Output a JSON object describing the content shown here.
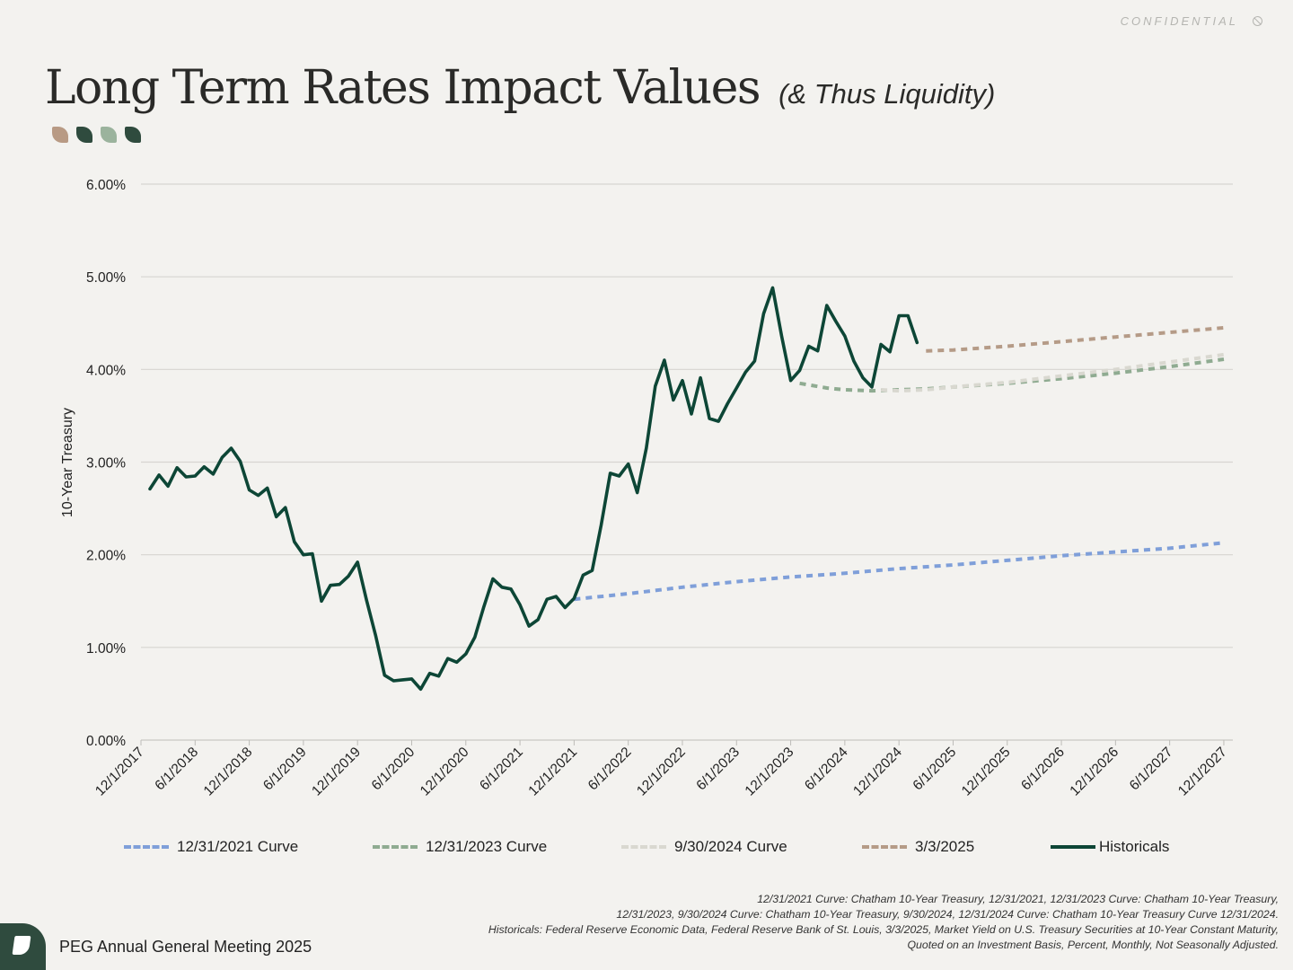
{
  "header": {
    "confidential_label": "CONFIDENTIAL",
    "confidential_icon": "ban-icon",
    "title": "Long Term Rates Impact Values",
    "subtitle": "(& Thus Liquidity)"
  },
  "leaf_colors": [
    "#b89a84",
    "#2f4b3e",
    "#9bb39d",
    "#2f4b3e"
  ],
  "chart_data": {
    "type": "line",
    "title": "Long Term Rates Impact Values (& Thus Liquidity)",
    "ylabel": "10-Year Treasury",
    "xlabel": "",
    "ylim": [
      0,
      6
    ],
    "y_ticks": [
      0,
      1,
      2,
      3,
      4,
      5,
      6
    ],
    "y_tick_labels": [
      "0.00%",
      "1.00%",
      "2.00%",
      "3.00%",
      "4.00%",
      "5.00%",
      "6.00%"
    ],
    "x_unit": "months since 12/1/2017",
    "xlim": [
      0,
      121
    ],
    "x_ticks": [
      0,
      6,
      12,
      18,
      24,
      30,
      36,
      42,
      48,
      54,
      60,
      66,
      72,
      78,
      84,
      90,
      96,
      102,
      108,
      114,
      120
    ],
    "x_tick_labels": [
      "12/1/2017",
      "6/1/2018",
      "12/1/2018",
      "6/1/2019",
      "12/1/2019",
      "6/1/2020",
      "12/1/2020",
      "6/1/2021",
      "12/1/2021",
      "6/1/2022",
      "12/1/2022",
      "6/1/2023",
      "12/1/2023",
      "6/1/2024",
      "12/1/2024",
      "6/1/2025",
      "12/1/2025",
      "6/1/2026",
      "12/1/2026",
      "6/1/2027",
      "12/1/2027"
    ],
    "grid": true,
    "legend_position": "bottom",
    "series": [
      {
        "name": "12/31/2021 Curve",
        "color": "#7f9fd9",
        "style": "dashed",
        "points": [
          [
            48,
            1.52
          ],
          [
            54,
            1.58
          ],
          [
            60,
            1.65
          ],
          [
            66,
            1.71
          ],
          [
            72,
            1.76
          ],
          [
            78,
            1.8
          ],
          [
            84,
            1.85
          ],
          [
            90,
            1.89
          ],
          [
            96,
            1.94
          ],
          [
            102,
            1.99
          ],
          [
            108,
            2.03
          ],
          [
            114,
            2.07
          ],
          [
            120,
            2.13
          ]
        ]
      },
      {
        "name": "12/31/2023 Curve",
        "color": "#8fab91",
        "style": "dashed",
        "points": [
          [
            73,
            3.85
          ],
          [
            76,
            3.8
          ],
          [
            78,
            3.78
          ],
          [
            81,
            3.77
          ],
          [
            84,
            3.78
          ],
          [
            87,
            3.79
          ],
          [
            90,
            3.81
          ],
          [
            96,
            3.85
          ],
          [
            102,
            3.9
          ],
          [
            108,
            3.96
          ],
          [
            114,
            4.03
          ],
          [
            120,
            4.11
          ]
        ]
      },
      {
        "name": "9/30/2024 Curve",
        "color": "#d9d8d0",
        "style": "dashed",
        "points": [
          [
            82,
            3.78
          ],
          [
            84,
            3.77
          ],
          [
            87,
            3.78
          ],
          [
            90,
            3.81
          ],
          [
            96,
            3.86
          ],
          [
            102,
            3.93
          ],
          [
            108,
            4.0
          ],
          [
            114,
            4.08
          ],
          [
            120,
            4.16
          ]
        ]
      },
      {
        "name": "3/3/2025",
        "color": "#b59b87",
        "style": "dashed",
        "points": [
          [
            87,
            4.2
          ],
          [
            90,
            4.21
          ],
          [
            96,
            4.25
          ],
          [
            102,
            4.3
          ],
          [
            108,
            4.35
          ],
          [
            114,
            4.4
          ],
          [
            120,
            4.45
          ]
        ]
      },
      {
        "name": "Historicals",
        "color": "#0d4636",
        "style": "solid",
        "points": [
          [
            1,
            2.71
          ],
          [
            2,
            2.86
          ],
          [
            3,
            2.74
          ],
          [
            4,
            2.94
          ],
          [
            5,
            2.84
          ],
          [
            6,
            2.85
          ],
          [
            7,
            2.95
          ],
          [
            8,
            2.87
          ],
          [
            9,
            3.05
          ],
          [
            10,
            3.15
          ],
          [
            11,
            3.01
          ],
          [
            12,
            2.7
          ],
          [
            13,
            2.64
          ],
          [
            14,
            2.72
          ],
          [
            15,
            2.41
          ],
          [
            16,
            2.51
          ],
          [
            17,
            2.14
          ],
          [
            18,
            2.0
          ],
          [
            19,
            2.01
          ],
          [
            20,
            1.5
          ],
          [
            21,
            1.67
          ],
          [
            22,
            1.68
          ],
          [
            23,
            1.77
          ],
          [
            24,
            1.92
          ],
          [
            25,
            1.51
          ],
          [
            26,
            1.13
          ],
          [
            27,
            0.7
          ],
          [
            28,
            0.64
          ],
          [
            29,
            0.65
          ],
          [
            30,
            0.66
          ],
          [
            31,
            0.55
          ],
          [
            32,
            0.72
          ],
          [
            33,
            0.69
          ],
          [
            34,
            0.88
          ],
          [
            35,
            0.84
          ],
          [
            36,
            0.93
          ],
          [
            37,
            1.11
          ],
          [
            38,
            1.44
          ],
          [
            39,
            1.74
          ],
          [
            40,
            1.65
          ],
          [
            41,
            1.63
          ],
          [
            42,
            1.46
          ],
          [
            43,
            1.23
          ],
          [
            44,
            1.3
          ],
          [
            45,
            1.52
          ],
          [
            46,
            1.55
          ],
          [
            47,
            1.43
          ],
          [
            48,
            1.53
          ],
          [
            49,
            1.78
          ],
          [
            50,
            1.83
          ],
          [
            51,
            2.32
          ],
          [
            52,
            2.88
          ],
          [
            53,
            2.85
          ],
          [
            54,
            2.98
          ],
          [
            55,
            2.67
          ],
          [
            56,
            3.15
          ],
          [
            57,
            3.82
          ],
          [
            58,
            4.1
          ],
          [
            59,
            3.67
          ],
          [
            60,
            3.88
          ],
          [
            61,
            3.52
          ],
          [
            62,
            3.91
          ],
          [
            63,
            3.47
          ],
          [
            64,
            3.44
          ],
          [
            65,
            3.63
          ],
          [
            66,
            3.8
          ],
          [
            67,
            3.97
          ],
          [
            68,
            4.09
          ],
          [
            69,
            4.6
          ],
          [
            70,
            4.88
          ],
          [
            71,
            4.36
          ],
          [
            72,
            3.88
          ],
          [
            73,
            3.99
          ],
          [
            74,
            4.25
          ],
          [
            75,
            4.2
          ],
          [
            76,
            4.69
          ],
          [
            77,
            4.52
          ],
          [
            78,
            4.36
          ],
          [
            79,
            4.09
          ],
          [
            80,
            3.91
          ],
          [
            81,
            3.81
          ],
          [
            82,
            4.27
          ],
          [
            83,
            4.19
          ],
          [
            84,
            4.58
          ],
          [
            85,
            4.58
          ],
          [
            86,
            4.29
          ]
        ]
      }
    ]
  },
  "sources": [
    "12/31/2021 Curve: Chatham 10-Year Treasury, 12/31/2021, 12/31/2023 Curve: Chatham 10-Year Treasury,",
    "12/31/2023, 9/30/2024 Curve: Chatham 10-Year Treasury, 9/30/2024, 12/31/2024 Curve: Chatham 10-Year Treasury Curve 12/31/2024.",
    "Historicals: Federal Reserve Economic Data, Federal Reserve Bank of St. Louis, 3/3/2025, Market Yield on U.S. Treasury Securities at 10-Year Constant Maturity,",
    "Quoted on an Investment Basis, Percent, Monthly, Not Seasonally Adjusted."
  ],
  "footer": {
    "logo_icon": "peg-logo-icon",
    "text": "PEG Annual General Meeting 2025"
  }
}
